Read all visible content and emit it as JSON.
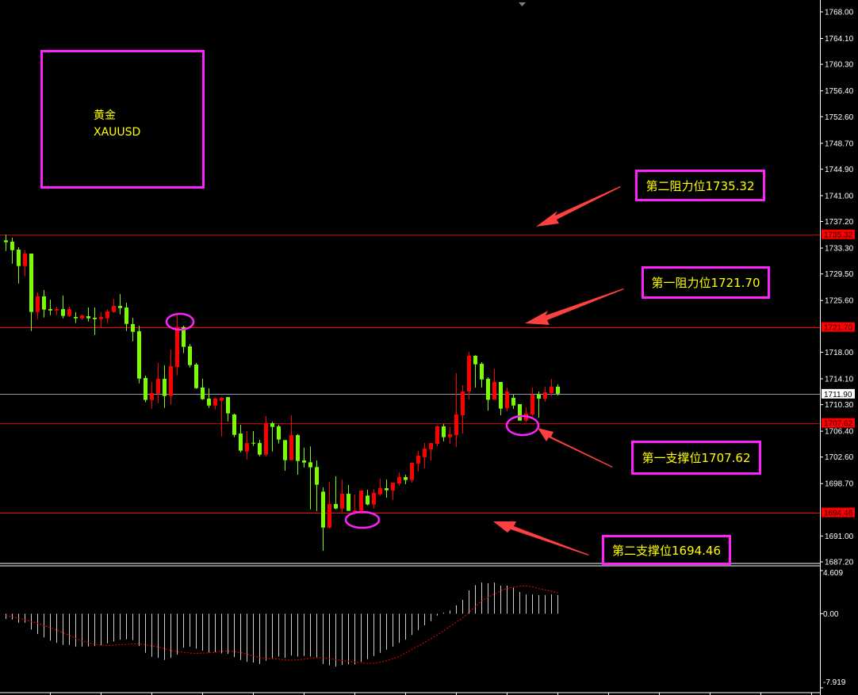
{
  "info_box": {
    "name_cn": "黄金",
    "symbol": "XAUUSD"
  },
  "annotations": {
    "resistance_2": "第二阻力位1735.32",
    "resistance_1": "第一阻力位1721.70",
    "support_1": "第一支撑位1707.62",
    "support_2": "第二支撑位1694.46"
  },
  "colors": {
    "background": "#000000",
    "up_candle": "#ff0000",
    "down_candle": "#7cfc00",
    "annotation_box": "#ff22ff",
    "annotation_text": "#ffff00",
    "arrow": "#ff4040",
    "macd_histogram": "#d0d0d0",
    "macd_signal": "#ff0000"
  },
  "chart_data": [
    {
      "type": "candlestick",
      "symbol": "XAUUSD",
      "ylim": [
        1687.2,
        1768.0
      ],
      "y_ticks": [
        "1768.00",
        "1764.10",
        "1760.30",
        "1756.40",
        "1752.60",
        "1748.70",
        "1744.90",
        "1741.00",
        "1737.20",
        "1733.30",
        "1729.50",
        "1725.60",
        "1718.00",
        "1714.10",
        "1710.30",
        "1706.40",
        "1702.60",
        "1698.70",
        "1691.00",
        "1687.20"
      ],
      "levels": [
        {
          "value": 1735.32,
          "label": "1735.32",
          "color": "#ff0000",
          "style": "thin"
        },
        {
          "value": 1721.7,
          "label": "1721.70",
          "color": "#ff0000",
          "style": "solid"
        },
        {
          "value": 1707.62,
          "label": "1707.62",
          "color": "#ff0000",
          "style": "thin"
        },
        {
          "value": 1694.46,
          "label": "1694.46",
          "color": "#ff0000",
          "style": "solid"
        }
      ],
      "current_price": {
        "value": 1711.9,
        "label": "1711.90"
      },
      "ohlc_fields": [
        "open",
        "high",
        "low",
        "close"
      ],
      "ohlc": [
        [
          1734.43,
          1735.28,
          1732.88,
          1734.16
        ],
        [
          1734.23,
          1734.82,
          1731.01,
          1732.99
        ],
        [
          1733.07,
          1733.42,
          1728.1,
          1730.66
        ],
        [
          1730.66,
          1732.95,
          1729.15,
          1732.49
        ],
        [
          1732.49,
          1732.49,
          1721.12,
          1723.91
        ],
        [
          1723.91,
          1726.78,
          1722.86,
          1726.2
        ],
        [
          1726.2,
          1727.13,
          1723.1,
          1724.26
        ],
        [
          1724.34,
          1725.73,
          1723.44,
          1724.14
        ],
        [
          1724.14,
          1724.69,
          1723.44,
          1724.34
        ],
        [
          1724.34,
          1726.32,
          1722.98,
          1723.33
        ],
        [
          1723.33,
          1724.69,
          1723.17,
          1724.34
        ],
        [
          1723.17,
          1723.87,
          1722.28,
          1722.98
        ],
        [
          1722.98,
          1723.56,
          1722.75,
          1723.41
        ],
        [
          1723.29,
          1724.57,
          1722.51,
          1722.98
        ],
        [
          1723.06,
          1724.57,
          1720.53,
          1722.86
        ],
        [
          1722.86,
          1723.87,
          1721.58,
          1723.17
        ],
        [
          1722.98,
          1724.34,
          1722.28,
          1723.99
        ],
        [
          1723.91,
          1725.85,
          1723.79,
          1724.8
        ],
        [
          1724.8,
          1726.55,
          1723.56,
          1724.49
        ],
        [
          1724.57,
          1725.27,
          1721.12,
          1722.16
        ],
        [
          1722.13,
          1723.06,
          1719.6,
          1721.0
        ],
        [
          1721.08,
          1721.89,
          1713.43,
          1714.13
        ],
        [
          1714.21,
          1714.56,
          1710.64,
          1710.99
        ],
        [
          1710.99,
          1713.63,
          1709.71,
          1712.0
        ],
        [
          1711.92,
          1716.42,
          1710.52,
          1714.09
        ],
        [
          1714.09,
          1716.07,
          1709.82,
          1711.57
        ],
        [
          1711.57,
          1718.4,
          1710.29,
          1715.95
        ],
        [
          1715.84,
          1723.56,
          1714.6,
          1721.7
        ],
        [
          1721.7,
          1721.89,
          1717.86,
          1718.79
        ],
        [
          1718.86,
          1719.21,
          1715.76,
          1716.11
        ],
        [
          1716.19,
          1716.42,
          1712.62,
          1712.73
        ],
        [
          1712.81,
          1714.09,
          1710.99,
          1711.1
        ],
        [
          1711.18,
          1712.69,
          1709.82,
          1710.17
        ],
        [
          1710.17,
          1711.3,
          1709.59,
          1711.18
        ],
        [
          1710.87,
          1711.45,
          1705.63,
          1711.3
        ],
        [
          1711.41,
          1711.41,
          1707.84,
          1709.01
        ],
        [
          1708.85,
          1708.97,
          1705.51,
          1705.86
        ],
        [
          1706.06,
          1707.34,
          1703.3,
          1703.54
        ],
        [
          1703.42,
          1706.41,
          1702.25,
          1704.66
        ],
        [
          1704.7,
          1706.41,
          1704.23,
          1704.58
        ],
        [
          1704.66,
          1705.13,
          1702.72,
          1702.95
        ],
        [
          1702.95,
          1708.62,
          1702.72,
          1707.61
        ],
        [
          1707.57,
          1707.8,
          1703.42,
          1707.03
        ],
        [
          1707.11,
          1707.34,
          1704.58,
          1705.17
        ],
        [
          1705.09,
          1705.09,
          1700.59,
          1702.14
        ],
        [
          1702.14,
          1708.74,
          1702.14,
          1705.82
        ],
        [
          1705.82,
          1705.98,
          1700.0,
          1702.02
        ],
        [
          1702.1,
          1703.96,
          1701.05,
          1701.79
        ],
        [
          1701.83,
          1704.16,
          1694.92,
          1701.09
        ],
        [
          1701.13,
          1702.1,
          1694.65,
          1698.53
        ],
        [
          1697.52,
          1698.14,
          1688.83,
          1692.24
        ],
        [
          1692.24,
          1698.96,
          1692.12,
          1695.7
        ],
        [
          1695.7,
          1699.77,
          1694.92,
          1695.04
        ],
        [
          1695.04,
          1699.3,
          1694.53,
          1697.21
        ],
        [
          1697.21,
          1698.49,
          1694.69,
          1694.69
        ],
        [
          1694.53,
          1697.09,
          1694.53,
          1694.77
        ],
        [
          1694.77,
          1697.68,
          1694.38,
          1697.68
        ],
        [
          1696.94,
          1697.79,
          1695.5,
          1695.62
        ],
        [
          1695.62,
          1697.91,
          1695.04,
          1697.33
        ],
        [
          1697.13,
          1699.42,
          1696.9,
          1698.02
        ],
        [
          1698.02,
          1699.3,
          1696.63,
          1697.71
        ],
        [
          1697.68,
          1698.84,
          1696.28,
          1698.84
        ],
        [
          1698.72,
          1700.35,
          1698.37,
          1699.65
        ],
        [
          1699.65,
          1700.0,
          1698.61,
          1699.23
        ],
        [
          1699.23,
          1701.75,
          1698.84,
          1701.75
        ],
        [
          1701.63,
          1703.5,
          1700.47,
          1702.8
        ],
        [
          1702.57,
          1704.66,
          1700.94,
          1703.85
        ],
        [
          1703.73,
          1704.66,
          1702.1,
          1704.66
        ],
        [
          1704.55,
          1707.22,
          1704.2,
          1707.11
        ],
        [
          1707.11,
          1707.46,
          1704.89,
          1705.52
        ],
        [
          1705.52,
          1707.0,
          1704.55,
          1705.94
        ],
        [
          1705.82,
          1714.91,
          1704.08,
          1708.85
        ],
        [
          1708.74,
          1713.16,
          1706.06,
          1712.23
        ],
        [
          1712.23,
          1718.05,
          1711.06,
          1717.47
        ],
        [
          1717.47,
          1717.58,
          1712.81,
          1716.23
        ],
        [
          1716.3,
          1716.54,
          1712.81,
          1714.01
        ],
        [
          1714.09,
          1714.32,
          1709.43,
          1711.01
        ],
        [
          1711.01,
          1715.61,
          1711.01,
          1713.63
        ],
        [
          1713.63,
          1713.63,
          1708.74,
          1709.71
        ],
        [
          1709.78,
          1712.81,
          1709.32,
          1712.23
        ],
        [
          1711.3,
          1711.76,
          1709.67,
          1710.17
        ],
        [
          1710.37,
          1710.37,
          1707.96,
          1707.96
        ],
        [
          1707.96,
          1709.9,
          1707.73,
          1708.97
        ],
        [
          1708.85,
          1712.81,
          1708.62,
          1711.76
        ],
        [
          1711.76,
          1712.23,
          1708.39,
          1711.18
        ],
        [
          1711.18,
          1712.93,
          1710.72,
          1712.11
        ],
        [
          1712.0,
          1714.09,
          1711.53,
          1712.93
        ],
        [
          1712.93,
          1713.28,
          1711.65,
          1711.9
        ]
      ]
    },
    {
      "type": "bar+line",
      "indicator": "MACD",
      "ylim": [
        -7.919,
        4.609
      ],
      "y_ticks": [
        "4.609",
        "0.00",
        "-7.919"
      ],
      "histogram": [
        -0.56,
        -0.62,
        -0.96,
        -0.96,
        -1.69,
        -2.18,
        -2.54,
        -2.88,
        -3.11,
        -3.33,
        -3.33,
        -3.53,
        -3.53,
        -3.5,
        -3.45,
        -3.39,
        -3.16,
        -2.97,
        -2.77,
        -2.74,
        -2.82,
        -3.45,
        -4.18,
        -4.6,
        -4.72,
        -4.94,
        -4.72,
        -4.38,
        -3.62,
        -3.53,
        -3.73,
        -3.95,
        -4.15,
        -4.1,
        -4.24,
        -4.29,
        -4.63,
        -4.94,
        -5.14,
        -5.23,
        -5.37,
        -5.03,
        -4.75,
        -4.58,
        -4.72,
        -4.46,
        -4.58,
        -4.52,
        -4.58,
        -4.75,
        -5.37,
        -5.51,
        -5.65,
        -5.48,
        -5.42,
        -5.42,
        -5.14,
        -4.86,
        -4.52,
        -4.18,
        -3.84,
        -3.53,
        -3.11,
        -2.77,
        -2.26,
        -1.75,
        -1.24,
        -0.79,
        -0.2,
        0.11,
        0.34,
        0.9,
        1.47,
        2.49,
        3.05,
        3.33,
        3.25,
        3.33,
        3.0,
        3.0,
        2.77,
        2.32,
        2.06,
        2.06,
        1.98,
        1.98,
        2.06,
        1.98
      ],
      "signal": [
        -0.2,
        -0.34,
        -0.48,
        -0.65,
        -0.85,
        -1.02,
        -1.27,
        -1.5,
        -1.75,
        -2.03,
        -2.32,
        -2.63,
        -2.91,
        -3.11,
        -3.25,
        -3.36,
        -3.39,
        -3.36,
        -3.31,
        -3.28,
        -3.22,
        -3.22,
        -3.31,
        -3.45,
        -3.56,
        -3.73,
        -3.93,
        -4.04,
        -4.12,
        -4.21,
        -4.24,
        -4.21,
        -4.18,
        -4.12,
        -4.01,
        -3.98,
        -4.07,
        -4.15,
        -4.32,
        -4.52,
        -4.69,
        -4.8,
        -4.83,
        -4.86,
        -4.94,
        -4.97,
        -4.92,
        -4.86,
        -4.77,
        -4.69,
        -4.72,
        -4.8,
        -4.92,
        -5.0,
        -5.09,
        -5.17,
        -5.23,
        -5.31,
        -5.28,
        -5.17,
        -5.03,
        -4.8,
        -4.58,
        -4.18,
        -3.81,
        -3.45,
        -3.05,
        -2.68,
        -2.26,
        -1.84,
        -1.36,
        -0.9,
        -0.42,
        0.14,
        0.79,
        1.36,
        1.75,
        2.12,
        2.46,
        2.68,
        2.85,
        2.94,
        2.97,
        2.88,
        2.68,
        2.54,
        2.4,
        2.26
      ]
    }
  ]
}
